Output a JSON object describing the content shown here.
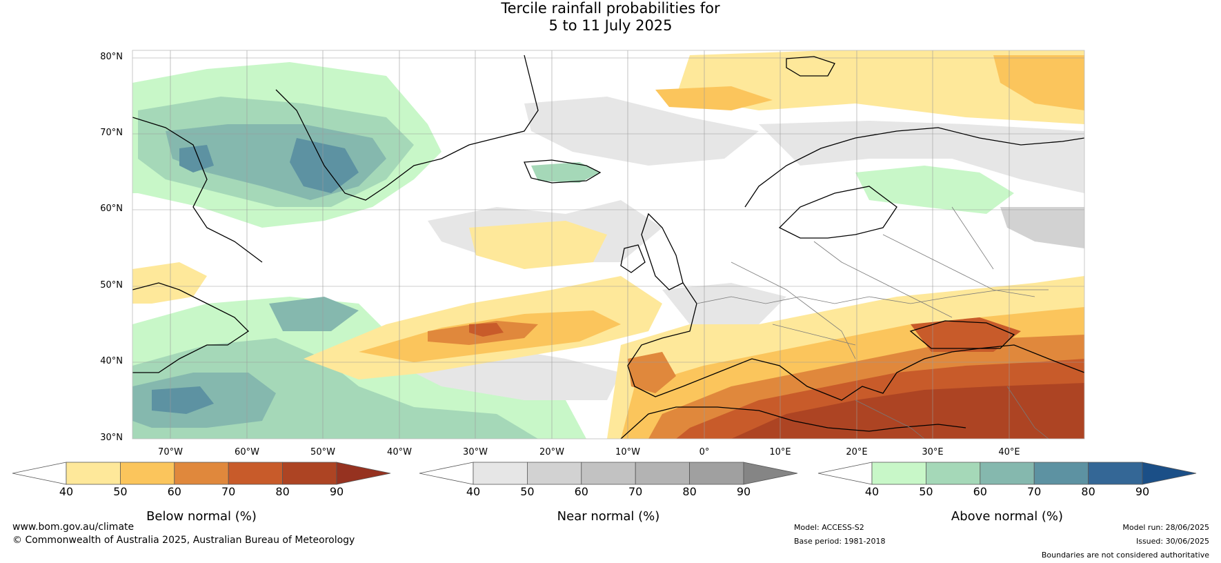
{
  "title": {
    "line1": "Tercile rainfall probabilities for",
    "line2": "5 to 11 July 2025"
  },
  "map": {
    "lat_labels": [
      "80°N",
      "70°N",
      "60°N",
      "50°N",
      "40°N",
      "30°N"
    ],
    "lon_labels": [
      "70°W",
      "60°W",
      "50°W",
      "40°W",
      "30°W",
      "20°W",
      "10°W",
      "0°",
      "10°E",
      "20°E",
      "30°E",
      "40°E"
    ],
    "lat_range": [
      30,
      80
    ],
    "lon_range": [
      -80,
      45
    ]
  },
  "colorbars": [
    {
      "label": "Below normal (%)",
      "ticks": [
        "40",
        "50",
        "60",
        "70",
        "80",
        "90"
      ],
      "colors": [
        "#ffffff",
        "#fee89a",
        "#fbc55c",
        "#e0883c",
        "#c85b2a",
        "#ad4423",
        "#963220"
      ]
    },
    {
      "label": "Near normal (%)",
      "ticks": [
        "40",
        "50",
        "60",
        "70",
        "80",
        "90"
      ],
      "colors": [
        "#ffffff",
        "#e6e6e6",
        "#d2d2d2",
        "#c2c2c2",
        "#b3b3b3",
        "#a0a0a0",
        "#858585"
      ]
    },
    {
      "label": "Above normal (%)",
      "ticks": [
        "40",
        "50",
        "60",
        "70",
        "80",
        "90"
      ],
      "colors": [
        "#ffffff",
        "#c8f7c8",
        "#a5d8b8",
        "#85b8ae",
        "#5d92a2",
        "#346796",
        "#1b4f87"
      ]
    }
  ],
  "footer": {
    "website": "www.bom.gov.au/climate",
    "copyright": "© Commonwealth of Australia 2025, Australian Bureau of Meteorology",
    "model": "Model: ACCESS-S2",
    "base_period": "Base period: 1981-2018",
    "model_run": "Model run: 28/06/2025",
    "issued": "Issued: 30/06/2025",
    "disclaimer": "Boundaries are not considered authoritative"
  }
}
